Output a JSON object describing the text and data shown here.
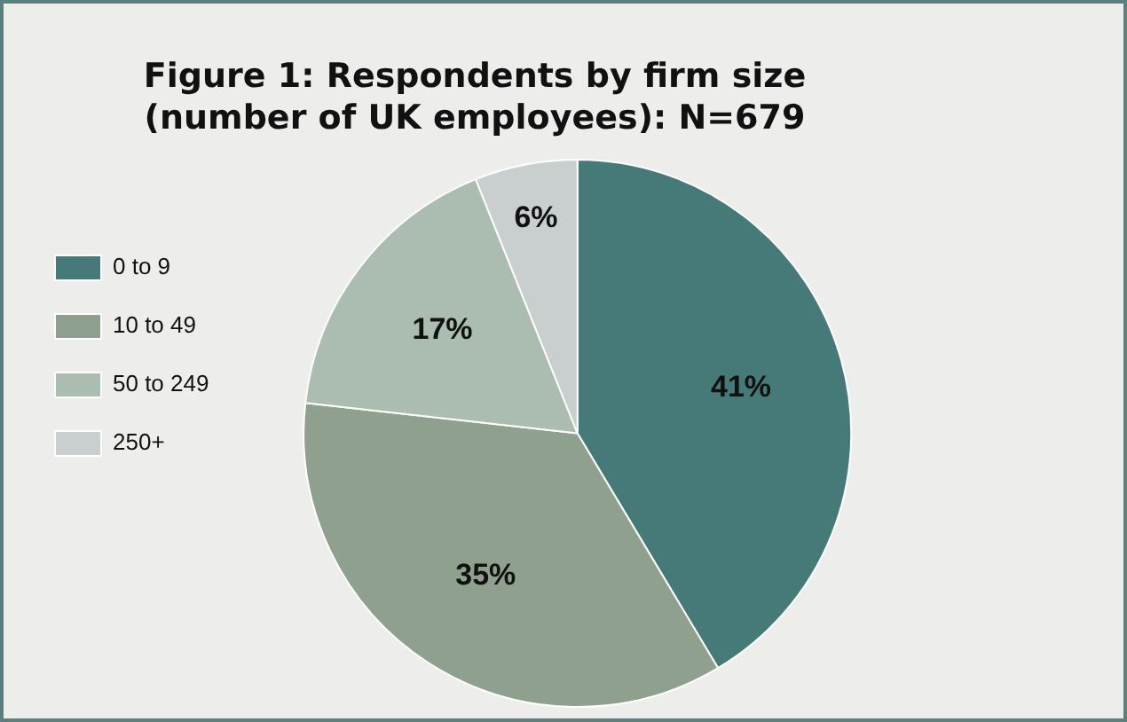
{
  "chart_data": {
    "type": "pie",
    "title": "Figure 1: Respondents by firm size\n(number of UK employees): N=679",
    "categories": [
      "0 to 9",
      "10 to 49",
      "50 to 249",
      "250+"
    ],
    "values": [
      41,
      35,
      17,
      6
    ],
    "colors": [
      "#467a78",
      "#8fa08f",
      "#abbcb0",
      "#c9cfcf"
    ],
    "value_labels": [
      "41%",
      "35%",
      "17%",
      "6%"
    ],
    "legend": "left"
  }
}
